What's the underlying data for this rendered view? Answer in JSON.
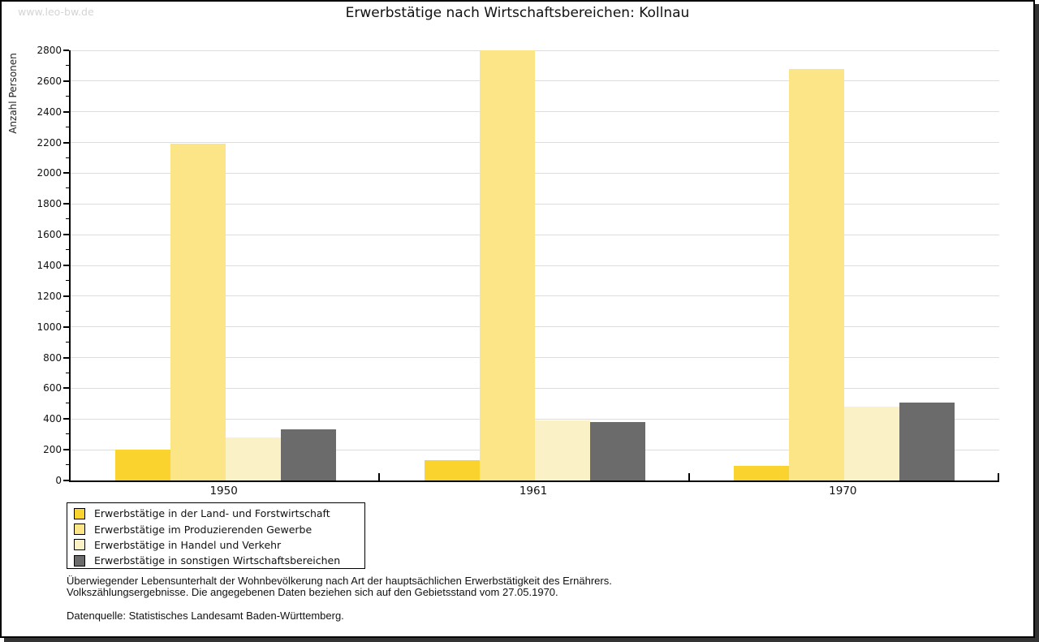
{
  "window": {
    "watermark": "www.leo-bw.de"
  },
  "chart_data": {
    "type": "bar",
    "title": "Erwerbstätige nach Wirtschaftsbereichen: Kollnau",
    "xlabel": "",
    "ylabel": "Anzahl Personen",
    "categories": [
      "1950",
      "1961",
      "1970"
    ],
    "series": [
      {
        "name": "Erwerbstätige in der Land- und Forstwirtschaft",
        "color": "#FBD32E",
        "values": [
          200,
          130,
          95
        ]
      },
      {
        "name": "Erwerbstätige im Produzierenden Gewerbe",
        "color": "#FBE586",
        "values": [
          2190,
          2800,
          2680
        ]
      },
      {
        "name": "Erwerbstätige in Handel und Verkehr",
        "color": "#FBF1C7",
        "values": [
          280,
          390,
          480
        ]
      },
      {
        "name": "Erwerbstätige in sonstigen Wirtschaftsbereichen",
        "color": "#6B6B6B",
        "values": [
          335,
          380,
          505
        ]
      }
    ],
    "ylim": [
      0,
      2800
    ],
    "ytick_major": 200,
    "ytick_minor": 100,
    "grid": true,
    "gridline_color": "#dddddd",
    "legend_position": "bottom-left"
  },
  "footer": {
    "note_line1": "Überwiegender Lebensunterhalt der Wohnbevölkerung nach Art der hauptsächlichen Erwerbstätigkeit des Ernährers.",
    "note_line2": "Volkszählungsergebnisse. Die angegebenen Daten beziehen sich auf den Gebietsstand vom 27.05.1970.",
    "source": "Datenquelle: Statistisches Landesamt Baden-Württemberg."
  }
}
